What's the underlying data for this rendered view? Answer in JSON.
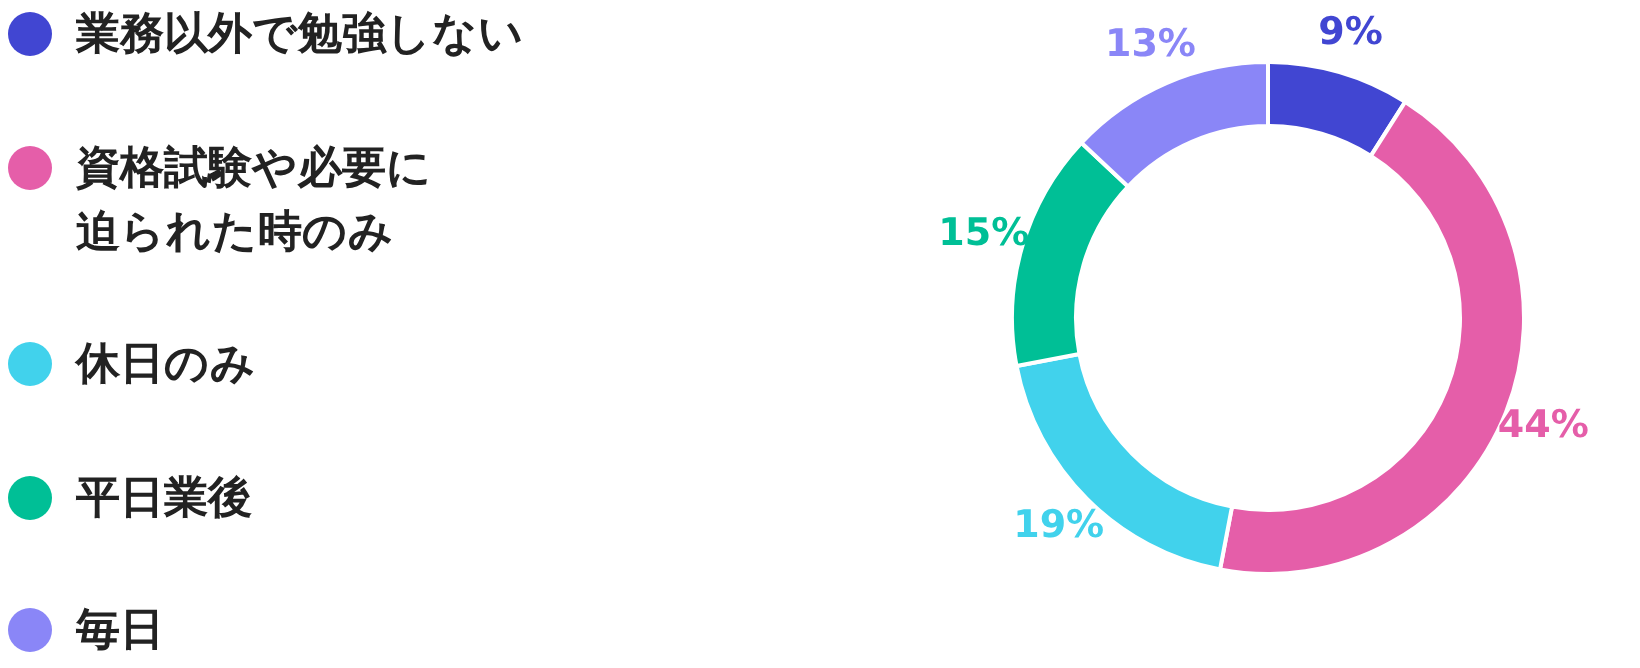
{
  "chart_data": {
    "type": "donut",
    "categories": [
      "業務以外で勉強しない",
      "資格試験や必要に迫られた時のみ",
      "休日のみ",
      "平日業後",
      "毎日"
    ],
    "values": [
      9,
      44,
      19,
      15,
      13
    ],
    "colors": [
      "#4146d2",
      "#e55ea9",
      "#41d2ec",
      "#00bf96",
      "#8a86f7"
    ],
    "value_labels": [
      "9%",
      "44%",
      "19%",
      "15%",
      "13%"
    ],
    "legend": "left"
  }
}
